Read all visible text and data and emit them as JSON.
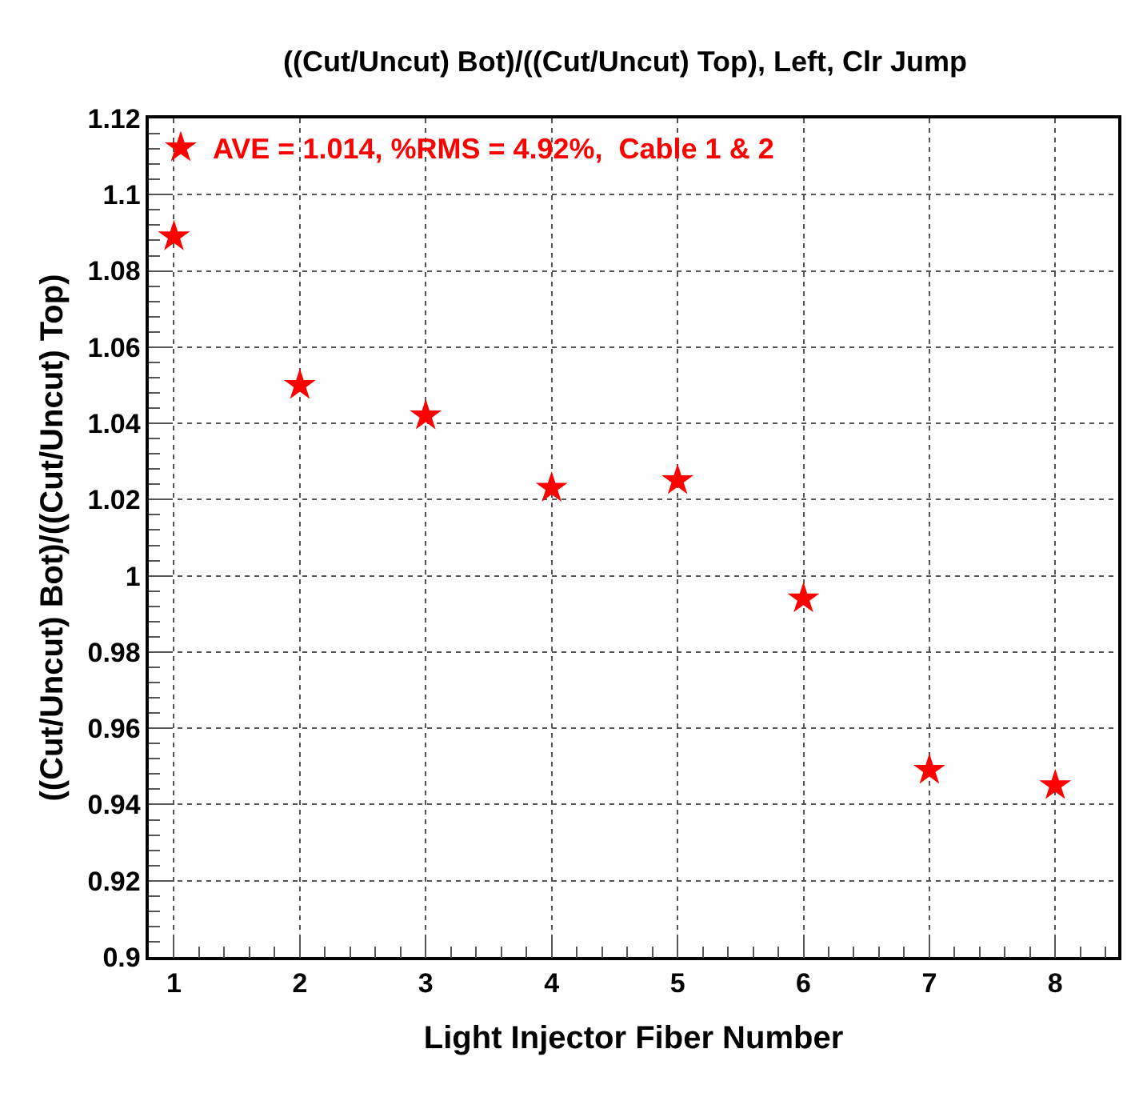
{
  "chart_data": {
    "type": "scatter",
    "title": "((Cut/Uncut) Bot)/((Cut/Uncut) Top), Left, Clr Jump",
    "xlabel": "Light Injector Fiber Number",
    "ylabel": "((Cut/Uncut) Bot)/((Cut/Uncut) Top)",
    "x": [
      1,
      2,
      3,
      4,
      5,
      6,
      7,
      8
    ],
    "series": [
      {
        "name": "AVE = 1.014, %RMS = 4.92%,  Cable 1 & 2",
        "color": "#ff0000",
        "values": [
          1.089,
          1.05,
          1.042,
          1.023,
          1.025,
          0.994,
          0.949,
          0.945
        ]
      }
    ],
    "xlim": [
      0.8,
      8.5
    ],
    "xticks": [
      1,
      2,
      3,
      4,
      5,
      6,
      7,
      8
    ],
    "ylim": [
      0.9,
      1.12
    ],
    "yticks": [
      0.9,
      0.92,
      0.94,
      0.96,
      0.98,
      1,
      1.02,
      1.04,
      1.06,
      1.08,
      1.1,
      1.12
    ],
    "grid": true,
    "legend": "top left",
    "marker": "star"
  }
}
